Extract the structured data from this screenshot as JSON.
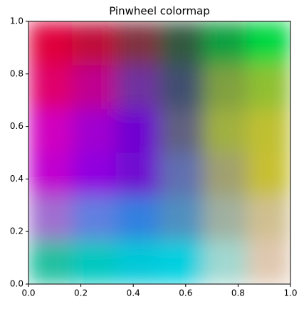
{
  "chart_data": {
    "type": "image",
    "title": "Pinwheel colormap",
    "xlim": [
      0,
      1
    ],
    "ylim": [
      0,
      1
    ],
    "xticks": [
      {
        "value": 0,
        "label": "0.0"
      },
      0.2,
      0.4,
      0.6,
      0.8,
      {
        "value": 1,
        "label": "1.0"
      }
    ],
    "yticks": [
      {
        "value": 0,
        "label": "0.0"
      },
      0.2,
      0.4,
      0.6,
      0.8,
      {
        "value": 1,
        "label": "1.0"
      }
    ],
    "colors": [
      [
        "#e0003a",
        "#c0103a",
        "#803040",
        "#305840",
        "#10a040",
        "#00d840"
      ],
      [
        "#e0006a",
        "#c00090",
        "#7030a0",
        "#405070",
        "#80a040",
        "#90c030"
      ],
      [
        "#d000c0",
        "#a000d0",
        "#7000d0",
        "#606080",
        "#a0b040",
        "#c0c030"
      ],
      [
        "#c000d0",
        "#9000e0",
        "#7010d0",
        "#6070b0",
        "#a0a070",
        "#c8c030"
      ],
      [
        "#a070d0",
        "#6080e0",
        "#3080e0",
        "#5090c0",
        "#a0b0a0",
        "#d0c090"
      ],
      [
        "#20c0a0",
        "#00c8c0",
        "#00c8d8",
        "#00d0e0",
        "#a0d8d0",
        "#e0c8b0"
      ]
    ]
  }
}
